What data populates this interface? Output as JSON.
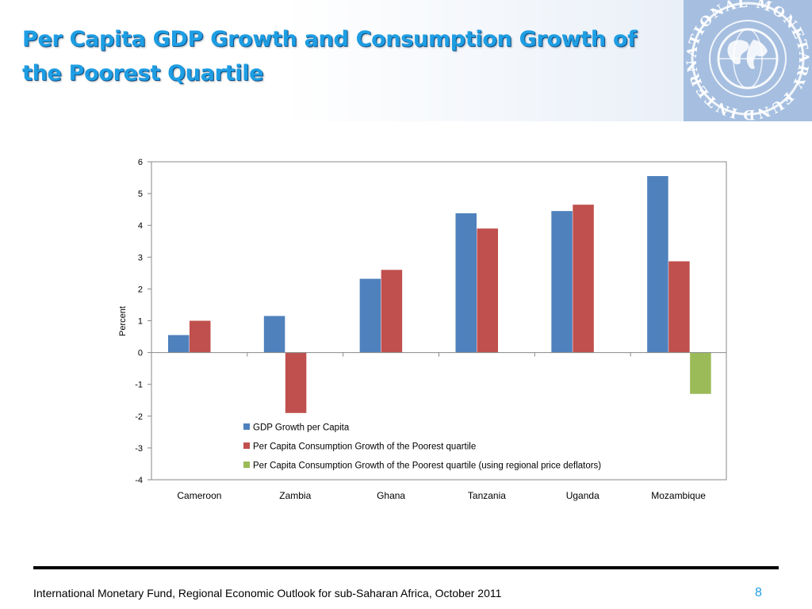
{
  "slide": {
    "title_line1": "Per Capita GDP Growth and Consumption Growth of",
    "title_line2": "the Poorest Quartile",
    "logo_text": "INTERNATIONAL MONETARY FUND",
    "footer_source": "International Monetary Fund, Regional Economic Outlook for sub-Saharan Africa, October 2011",
    "page_number": "8",
    "accent_color": "#1e9ee3"
  },
  "chart_data": {
    "type": "bar",
    "title": "",
    "xlabel": "",
    "ylabel": "Percent",
    "ylim": [
      -4,
      6
    ],
    "yticks": [
      "6",
      "5",
      "4",
      "3",
      "2",
      "1",
      "0",
      "-1",
      "-2",
      "-3",
      "-4"
    ],
    "categories": [
      "Cameroon",
      "Zambia",
      "Ghana",
      "Tanzania",
      "Uganda",
      "Mozambique"
    ],
    "series": [
      {
        "name": "GDP Growth per Capita",
        "color": "#4f81bd",
        "values": [
          0.55,
          1.15,
          2.32,
          4.38,
          4.45,
          5.55
        ]
      },
      {
        "name": "Per Capita Consumption Growth of the Poorest quartile",
        "color": "#c0504d",
        "values": [
          1.0,
          -1.9,
          2.6,
          3.9,
          4.65,
          2.87
        ]
      },
      {
        "name": "Per Capita Consumption Growth of the Poorest quartile (using regional price deflators)",
        "color": "#9bbb59",
        "values": [
          null,
          null,
          null,
          null,
          null,
          -1.3
        ]
      }
    ],
    "legend_position": "bottom-center-inside"
  }
}
